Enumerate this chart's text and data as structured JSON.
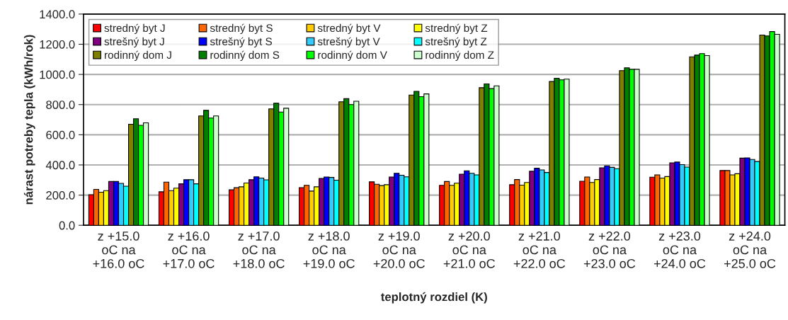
{
  "chart_data": {
    "type": "bar",
    "xlabel": "teplotný rozdiel (K)",
    "ylabel": "nárast potreby tepla (kWh/rok)",
    "categories": [
      "z +15.0\noC na\n+16.0 oC",
      "z +16.0\noC na\n+17.0 oC",
      "z +17.0\noC na\n+18.0 oC",
      "z +18.0\noC na\n+19.0 oC",
      "z +19.0\noC na\n+20.0 oC",
      "z +20.0\noC na\n+21.0 oC",
      "z +21.0\noC na\n+22.0 oC",
      "z +22.0\noC na\n+23.0 oC",
      "z +23.0\noC na\n+24.0 oC",
      "z +24.0\noC na\n+25.0 oC"
    ],
    "ylim": [
      0,
      1400
    ],
    "yticks": [
      {
        "value": 0,
        "label": "0.0"
      },
      {
        "value": 200,
        "label": "200.0"
      },
      {
        "value": 400,
        "label": "400.0"
      },
      {
        "value": 600,
        "label": "600.0"
      },
      {
        "value": 800,
        "label": "800.0"
      },
      {
        "value": 1000,
        "label": "1000.0"
      },
      {
        "value": 1200,
        "label": "1200.0"
      },
      {
        "value": 1400,
        "label": "1400.0"
      }
    ],
    "grid": "y",
    "legend": "top left",
    "series": [
      {
        "name": "stredný byt J",
        "color": "#ff0000",
        "values": [
          203,
          222,
          235,
          250,
          288,
          265,
          269,
          292,
          319,
          363
        ]
      },
      {
        "name": "stredný byt S",
        "color": "#ff6600",
        "values": [
          238,
          286,
          249,
          265,
          272,
          290,
          303,
          320,
          334,
          363
        ]
      },
      {
        "name": "stredný byt V",
        "color": "#ffcc00",
        "values": [
          219,
          230,
          255,
          227,
          263,
          265,
          266,
          284,
          313,
          334
        ]
      },
      {
        "name": "stredný byt Z",
        "color": "#ffff00",
        "values": [
          230,
          246,
          280,
          255,
          269,
          279,
          284,
          303,
          323,
          342
        ]
      },
      {
        "name": "strešný byt J",
        "color": "#800080",
        "values": [
          290,
          275,
          302,
          310,
          320,
          339,
          358,
          381,
          414,
          445
        ]
      },
      {
        "name": "strešný byt S",
        "color": "#0000ff",
        "values": [
          290,
          302,
          321,
          320,
          345,
          361,
          378,
          394,
          419,
          447
        ]
      },
      {
        "name": "strešný byt V",
        "color": "#33ccff",
        "values": [
          278,
          302,
          313,
          317,
          332,
          345,
          367,
          384,
          402,
          436
        ]
      },
      {
        "name": "strešný byt Z",
        "color": "#00ffff",
        "values": [
          259,
          275,
          301,
          299,
          321,
          334,
          350,
          375,
          386,
          423
        ]
      },
      {
        "name": "rodinný dom J",
        "color": "#808000",
        "values": [
          670,
          725,
          772,
          819,
          863,
          912,
          953,
          1025,
          1117,
          1261
        ]
      },
      {
        "name": "rodinný dom S",
        "color": "#008000",
        "values": [
          706,
          762,
          809,
          839,
          888,
          937,
          975,
          1044,
          1128,
          1255
        ]
      },
      {
        "name": "rodinný dom V",
        "color": "#00ff00",
        "values": [
          663,
          711,
          751,
          800,
          853,
          906,
          964,
          1034,
          1138,
          1284
        ]
      },
      {
        "name": "rodinný dom Z",
        "color": "#ccffcc",
        "values": [
          679,
          725,
          776,
          822,
          871,
          924,
          969,
          1034,
          1125,
          1266
        ]
      }
    ]
  }
}
